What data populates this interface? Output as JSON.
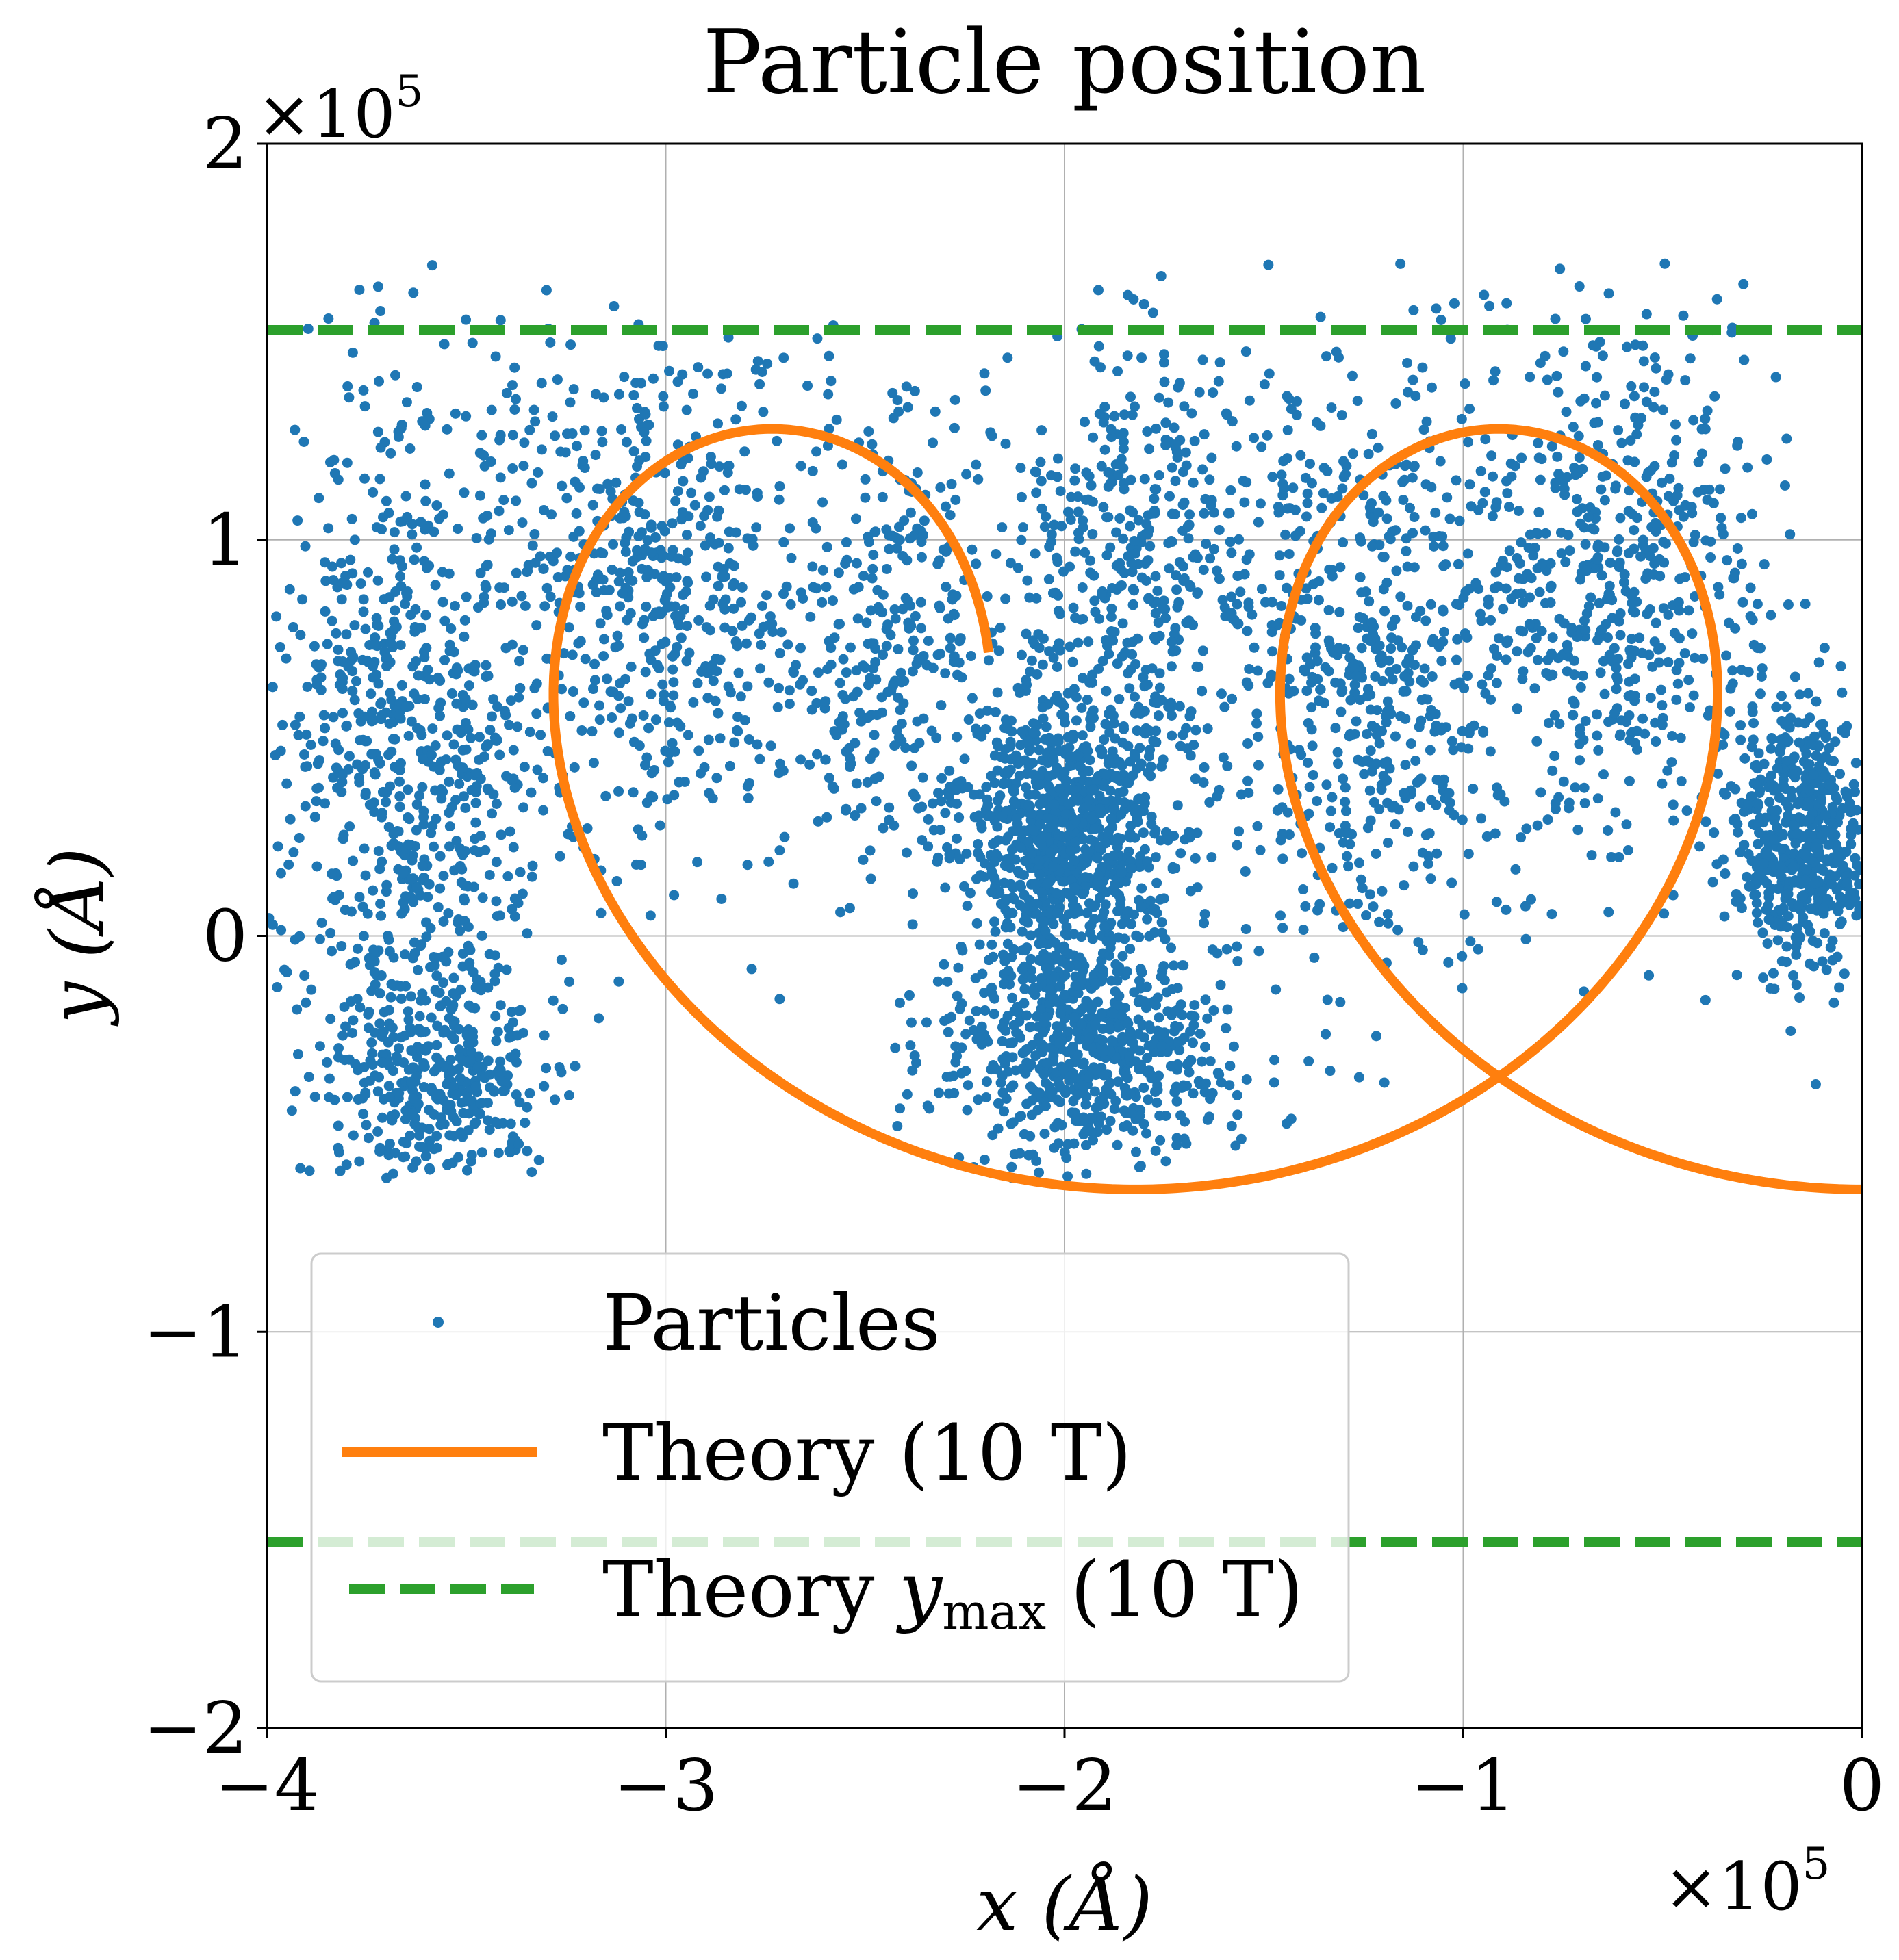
{
  "chart_data": {
    "type": "scatter",
    "title": "Particle position",
    "xlabel": "x (Å)",
    "ylabel": "y (Å)",
    "x_offset_label": "×10",
    "y_offset_label": "×10",
    "offset_exponent": "5",
    "xlim": [
      -4,
      0
    ],
    "ylim": [
      -2,
      2
    ],
    "x_ticks": [
      {
        "value": -4,
        "label": "−4"
      },
      {
        "value": -3,
        "label": "−3"
      },
      {
        "value": -2,
        "label": "−2"
      },
      {
        "value": -1,
        "label": "−1"
      },
      {
        "value": 0,
        "label": "0"
      }
    ],
    "y_ticks": [
      {
        "value": -2,
        "label": "−2"
      },
      {
        "value": -1,
        "label": "−1"
      },
      {
        "value": 0,
        "label": "0"
      },
      {
        "value": 1,
        "label": "1"
      },
      {
        "value": 2,
        "label": "2"
      }
    ],
    "grid": true,
    "legend_position": "lower-left",
    "series": [
      {
        "name": "Particles",
        "kind": "scatter",
        "color": "#1f77b4",
        "clusters": [
          {
            "cx": -3.65,
            "cy": 0.35,
            "rx": 0.33,
            "ry": 1.05,
            "n": 900
          },
          {
            "cx": -3.55,
            "cy": -0.35,
            "rx": 0.22,
            "ry": 0.2,
            "n": 250
          },
          {
            "cx": -3.05,
            "cy": 0.9,
            "rx": 0.35,
            "ry": 0.6,
            "n": 500
          },
          {
            "cx": -2.45,
            "cy": 0.75,
            "rx": 0.3,
            "ry": 0.55,
            "n": 350
          },
          {
            "cx": -2.0,
            "cy": 0.25,
            "rx": 0.22,
            "ry": 0.35,
            "n": 900
          },
          {
            "cx": -1.95,
            "cy": -0.3,
            "rx": 0.33,
            "ry": 0.25,
            "n": 650
          },
          {
            "cx": -1.8,
            "cy": 0.95,
            "rx": 0.3,
            "ry": 0.55,
            "n": 400
          },
          {
            "cx": -1.25,
            "cy": 0.7,
            "rx": 0.35,
            "ry": 0.7,
            "n": 600
          },
          {
            "cx": -0.6,
            "cy": 0.9,
            "rx": 0.35,
            "ry": 0.6,
            "n": 550
          },
          {
            "cx": -0.15,
            "cy": 0.25,
            "rx": 0.15,
            "ry": 0.3,
            "n": 550
          }
        ]
      },
      {
        "name": "Theory (10 T)",
        "kind": "line",
        "color": "#ff7f0e",
        "trochoid": {
          "radius": 0.96,
          "x_center_start": 0.0,
          "y_center": 0.32,
          "drift_per_radian": -0.29,
          "phase_start": -1.57,
          "phase_end": 9.0
        }
      },
      {
        "name": "Theory y_max (10 T)",
        "legend_main": "Theory ",
        "legend_var": "y",
        "legend_sub": "max",
        "legend_tail": " (10 T)",
        "kind": "hline",
        "color": "#2ca02c",
        "values": [
          1.53,
          -1.53
        ]
      }
    ]
  }
}
